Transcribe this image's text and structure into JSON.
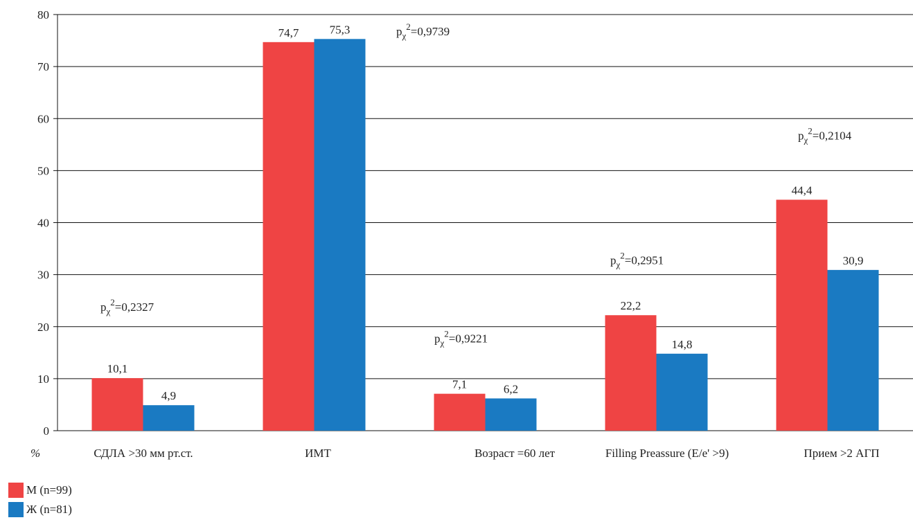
{
  "chart_data": {
    "type": "bar",
    "unit_label": "%",
    "ylim": [
      0,
      80
    ],
    "yticks": [
      0,
      10,
      20,
      30,
      40,
      50,
      60,
      70,
      80
    ],
    "grid": true,
    "categories": [
      "СДЛА >30 мм рт.ст.",
      "ИМТ",
      "Возраст =60 лет",
      "Filling Preassure (E/e' >9)",
      "Прием >2 АГП"
    ],
    "series": [
      {
        "name": "М (n=99)",
        "color": "#ef4444",
        "values": [
          10.1,
          74.7,
          7.1,
          22.2,
          44.4
        ],
        "labels": [
          "10,1",
          "74,7",
          "7,1",
          "22,2",
          "44,4"
        ]
      },
      {
        "name": "Ж (n=81)",
        "color": "#1a7ac2",
        "values": [
          4.9,
          75.3,
          6.2,
          14.8,
          30.9
        ],
        "labels": [
          "4,9",
          "75,3",
          "6,2",
          "14,8",
          "30,9"
        ]
      }
    ],
    "annotations": [
      {
        "prefix": "p",
        "sub": "χ",
        "sup": "2",
        "value": "=0,2327",
        "category": 0,
        "y": 23
      },
      {
        "prefix": "p",
        "sub": "χ",
        "sup": "2",
        "value": "=0,9739",
        "category": 1,
        "y": 76
      },
      {
        "prefix": "p",
        "sub": "χ",
        "sup": "2",
        "value": "=0,9221",
        "category": 2,
        "y": 17
      },
      {
        "prefix": "p",
        "sub": "χ",
        "sup": "2",
        "value": "=0,2951",
        "category": 3,
        "y": 32
      },
      {
        "prefix": "p",
        "sub": "χ",
        "sup": "2",
        "value": "=0,2104",
        "category": 4,
        "y": 56
      }
    ],
    "legend_position": "bottom-left"
  }
}
